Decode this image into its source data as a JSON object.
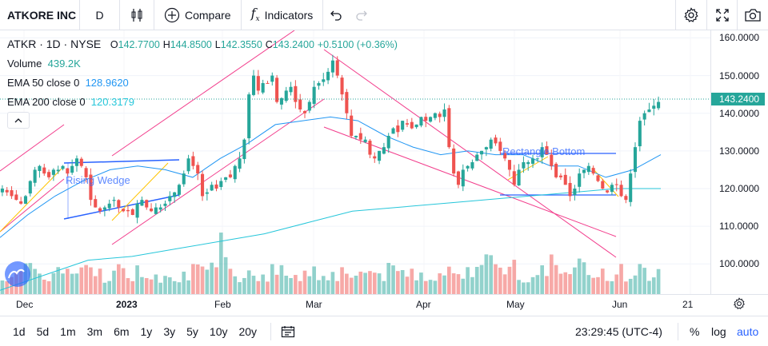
{
  "header": {
    "symbol_box": "ATKORE INC",
    "interval": "D",
    "compare": "Compare",
    "indicators": "Indicators"
  },
  "legend": {
    "ticker": "ATKR",
    "interval": "1D",
    "exchange": "NYSE",
    "open_label": "O",
    "open": "142.7700",
    "high_label": "H",
    "high": "144.8500",
    "low_label": "L",
    "low": "142.3550",
    "close_label": "C",
    "close": "143.2400",
    "change": "+0.5100 (+0.36%)",
    "volume_label": "Volume",
    "volume": "439.2K",
    "ema50_label": "EMA 50 close 0",
    "ema50": "128.9620",
    "ema200_label": "EMA 200 close 0",
    "ema200": "120.3179"
  },
  "annotations": {
    "wedge": "Rising Wedge",
    "rect": "Rectangle Bottom"
  },
  "price_tag": "143.2400",
  "bottom": {
    "ranges": [
      "1d",
      "5d",
      "1m",
      "3m",
      "6m",
      "1y",
      "3y",
      "5y",
      "10y",
      "20y"
    ],
    "time": "23:29:45 (UTC-4)",
    "pct": "%",
    "log": "log",
    "auto": "auto"
  },
  "colors": {
    "up": "#26a69a",
    "down": "#ef5350",
    "ema50": "#2196f3",
    "ema200": "#26c6da",
    "trend": "#f23d8c",
    "wedge": "#2962ff"
  },
  "chart_data": {
    "type": "candlestick",
    "y_axis_ticks": [
      160,
      150,
      140,
      130,
      120,
      110,
      100
    ],
    "y_axis_labels": [
      "160.0000",
      "150.0000",
      "140.0000",
      "130.0000",
      "120.0000",
      "110.0000",
      "100.0000"
    ],
    "x_axis_labels": [
      "Dec",
      "2023",
      "Feb",
      "Mar",
      "Apr",
      "May",
      "Jun",
      "21"
    ],
    "ylim": [
      92,
      162
    ],
    "series": [
      {
        "name": "Price",
        "closes": [
          120,
          119,
          118,
          117,
          116,
          118,
          122,
          125,
          126,
          124,
          123,
          125,
          125,
          126,
          124,
          126,
          128,
          126,
          123,
          117,
          115,
          114,
          115,
          116,
          117,
          115,
          114,
          114,
          113,
          116,
          117,
          115,
          114,
          115,
          115,
          116,
          118,
          119,
          121,
          124,
          128,
          126,
          124,
          118,
          119,
          121,
          120,
          122,
          123,
          123,
          126,
          128,
          133,
          145,
          150,
          146,
          148,
          148,
          150,
          143,
          144,
          146,
          147,
          143,
          141,
          140,
          143,
          147,
          148,
          149,
          151,
          154,
          150,
          145,
          140,
          134,
          134,
          133,
          133,
          129,
          128,
          130,
          131,
          134,
          136,
          135,
          138,
          137,
          136,
          137,
          139,
          138,
          139,
          140,
          139,
          141,
          131,
          124,
          121,
          125,
          126,
          127,
          129,
          130,
          131,
          133,
          132,
          130,
          128,
          125,
          121,
          125,
          127,
          127,
          128,
          128,
          131,
          129,
          126,
          123,
          123,
          121,
          118,
          120,
          124,
          125,
          126,
          124,
          122,
          120,
          119,
          121,
          121,
          118,
          117,
          124,
          131,
          138,
          140,
          141,
          142,
          143
        ]
      },
      {
        "name": "EMA 50",
        "values": [
          107,
          113,
          118,
          122,
          125,
          126,
          125,
          123,
          128,
          132,
          137,
          138,
          139,
          138,
          134,
          131,
          129,
          130,
          129,
          129,
          126,
          126,
          123,
          125,
          129
        ]
      },
      {
        "name": "EMA 200",
        "values": [
          93,
          97,
          101,
          102,
          104,
          106,
          108,
          111,
          114,
          115,
          116,
          117,
          118,
          119,
          120,
          120
        ]
      }
    ],
    "volume": {
      "max": 2200000
    }
  }
}
